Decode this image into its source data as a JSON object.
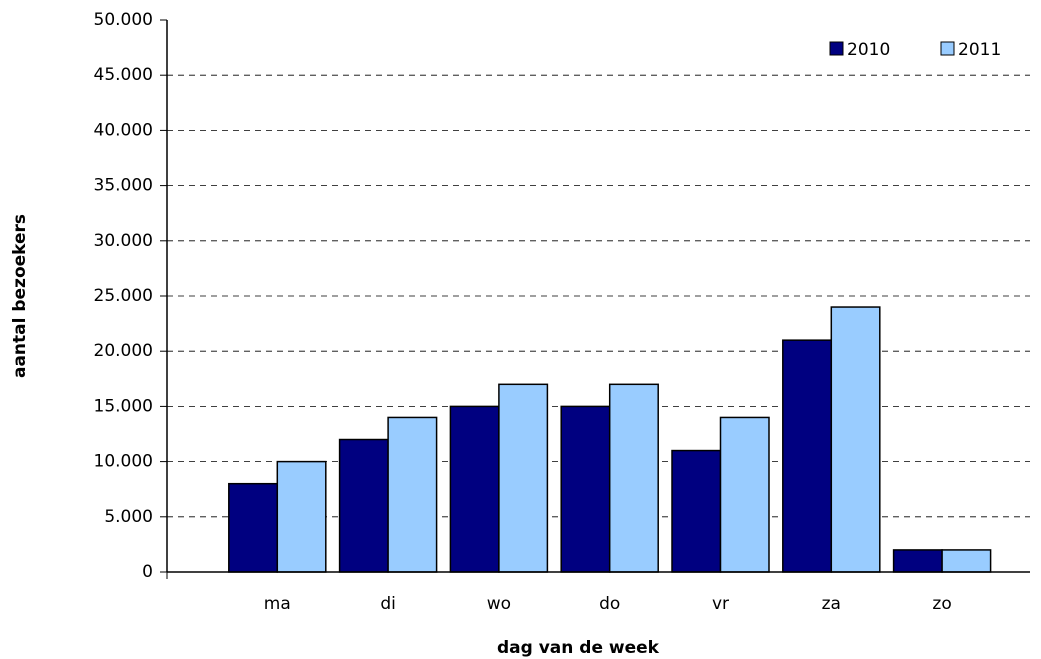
{
  "chart_data": {
    "type": "bar",
    "x_label": "dag van de week",
    "y_label": "aantal bezoekers",
    "categories": [
      null,
      "ma",
      "di",
      "wo",
      "do",
      "vr",
      "za",
      "zo"
    ],
    "series": [
      {
        "name": "2010",
        "color": "#000080",
        "values": [
          null,
          8000,
          12000,
          15000,
          15000,
          11000,
          21000,
          2000
        ]
      },
      {
        "name": "2011",
        "color": "#99ccff",
        "values": [
          null,
          10000,
          14000,
          17000,
          17000,
          14000,
          24000,
          2000
        ]
      }
    ],
    "ylim": [
      0,
      50000
    ],
    "yticks": [
      0,
      {
        "value": 5000,
        "label": "5.000"
      },
      {
        "value": 10000,
        "label": "10.000"
      },
      {
        "value": 15000,
        "label": "15.000"
      },
      {
        "value": 20000,
        "label": "20.000"
      },
      {
        "value": 25000,
        "label": "25.000"
      },
      {
        "value": 30000,
        "label": "30.000"
      },
      {
        "value": 35000,
        "label": "35.000"
      },
      {
        "value": 40000,
        "label": "40.000"
      },
      {
        "value": 45000,
        "label": "45.000"
      },
      {
        "value": 50000,
        "label": "50.000"
      }
    ],
    "grid": true,
    "legend": "upper right"
  }
}
